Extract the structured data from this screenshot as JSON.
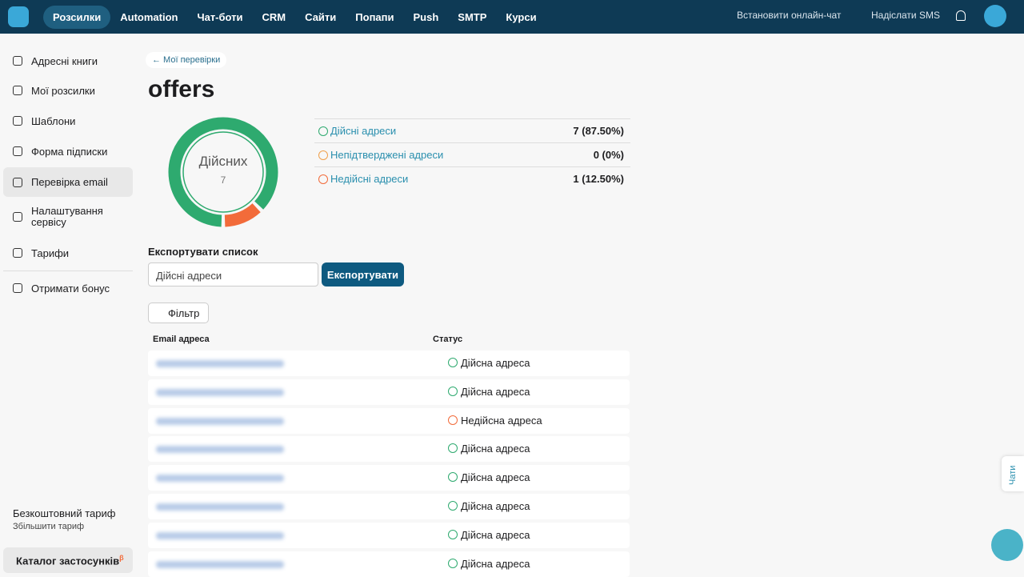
{
  "nav": {
    "items": [
      "Розсилки",
      "Automation",
      "Чат-боти",
      "CRM",
      "Сайти",
      "Попапи",
      "Push",
      "SMTP",
      "Курси"
    ],
    "chat": "Встановити онлайн-чат",
    "sms": "Надіслати SMS"
  },
  "sidebar": {
    "items": [
      "Адресні книги",
      "Мої розсилки",
      "Шаблони",
      "Форма підписки",
      "Перевірка email",
      "Налаштування сервісу",
      "Тарифи"
    ],
    "bonus": "Отримати бонус",
    "plan": "Безкоштовний тариф",
    "upgrade": "Збільшити тариф",
    "catalog": "Каталог застосунків",
    "beta": "β"
  },
  "page": {
    "back": "← Мої перевірки",
    "title": "offers"
  },
  "donut": {
    "label": "Дійсних",
    "count": 7,
    "segments": [
      {
        "value": 7,
        "color": "#2eaa6f"
      },
      {
        "value": 0,
        "color": "#f0a04b"
      },
      {
        "value": 1,
        "color": "#f26b3a"
      }
    ]
  },
  "stats": [
    {
      "label": "Дійсні адреси",
      "value": "7 (87.50%)"
    },
    {
      "label": "Непідтверджені адреси",
      "value": "0 (0%)"
    },
    {
      "label": "Недійсні адреси",
      "value": "1 (12.50%)"
    }
  ],
  "export": {
    "label": "Експортувати список",
    "select": "Дійсні адреси",
    "button": "Експортувати"
  },
  "filter": "Фільтр",
  "table": {
    "headers": [
      "Email адреса",
      "Статус"
    ],
    "rows": [
      "Дійсна адреса",
      "Дійсна адреса",
      "Недійсна адреса",
      "Дійсна адреса",
      "Дійсна адреса",
      "Дійсна адреса",
      "Дійсна адреса",
      "Дійсна адреса"
    ]
  },
  "chats": "Чати"
}
